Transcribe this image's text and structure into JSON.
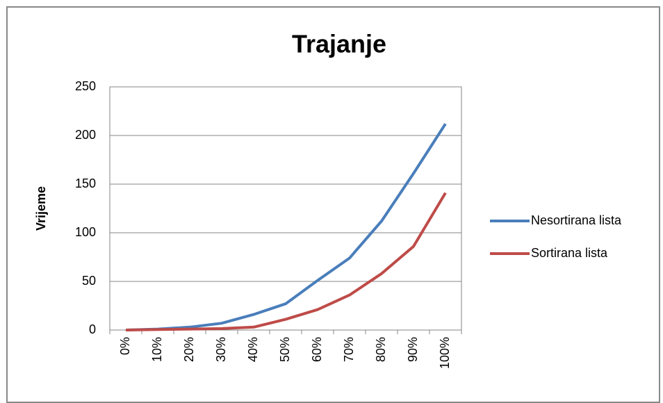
{
  "chart_data": {
    "type": "line",
    "title": "Trajanje",
    "ylabel": "Vrijeme",
    "categories": [
      "0%",
      "10%",
      "20%",
      "30%",
      "40%",
      "50%",
      "60%",
      "70%",
      "80%",
      "90%",
      "100%"
    ],
    "series": [
      {
        "name": "Nesortirana lista",
        "color": "#4a7ebb",
        "values": [
          0,
          1,
          3,
          7,
          16,
          27,
          51,
          74,
          112,
          161,
          212
        ]
      },
      {
        "name": "Sortirana lista",
        "color": "#be4b48",
        "values": [
          0,
          0.5,
          1,
          1.5,
          3,
          11,
          21,
          36,
          58,
          86,
          141
        ]
      }
    ],
    "ylim": [
      0,
      250
    ],
    "yticks": [
      0,
      50,
      100,
      150,
      200,
      250
    ],
    "grid": true,
    "legend": "right"
  }
}
